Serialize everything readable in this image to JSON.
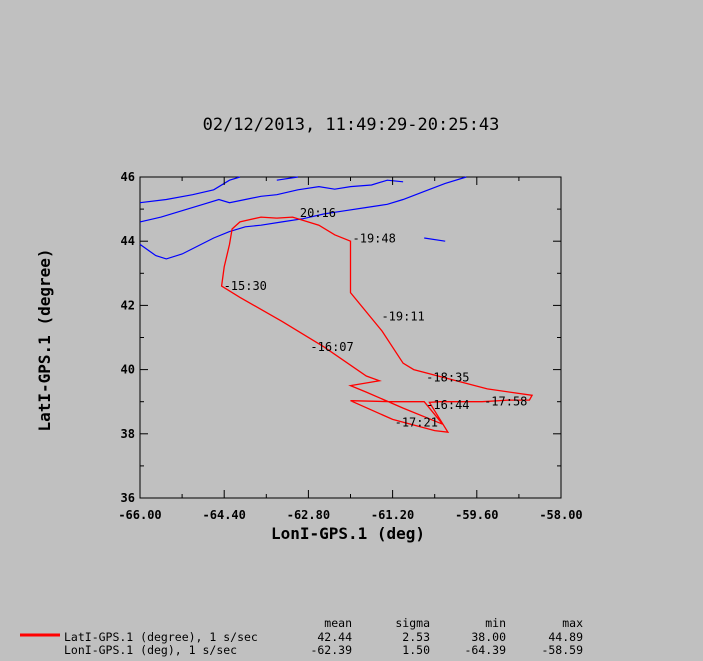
{
  "chart_data": {
    "type": "line",
    "title": "02/12/2013, 11:49:29-20:25:43",
    "xlabel": "LonI-GPS.1 (deg)",
    "ylabel": "LatI-GPS.1 (degree)",
    "xlim": [
      -66.0,
      -58.0
    ],
    "ylim": [
      36,
      46
    ],
    "x_ticks": [
      "-66.00",
      "-64.40",
      "-62.80",
      "-61.20",
      "-59.60",
      "-58.00"
    ],
    "y_ticks": [
      "36",
      "38",
      "40",
      "42",
      "44",
      "46"
    ],
    "series": [
      {
        "name": "LatI-GPS.1 (degree), 1 s/sec",
        "color": "#ff0000",
        "points": [
          [
            -63.4,
            44.72
          ],
          [
            -63.7,
            44.75
          ],
          [
            -64.1,
            44.6
          ],
          [
            -64.25,
            44.38
          ],
          [
            -64.3,
            43.9
          ],
          [
            -64.4,
            43.2
          ],
          [
            -64.45,
            42.6
          ],
          [
            -64.1,
            42.25
          ],
          [
            -63.3,
            41.5
          ],
          [
            -62.5,
            40.7
          ],
          [
            -61.7,
            39.8
          ],
          [
            -61.45,
            39.65
          ],
          [
            -62.0,
            39.5
          ],
          [
            -61.7,
            39.3
          ],
          [
            -61.0,
            38.8
          ],
          [
            -60.25,
            38.3
          ],
          [
            -60.6,
            39.0
          ],
          [
            -61.2,
            39.0
          ],
          [
            -62.0,
            39.03
          ],
          [
            -61.2,
            38.45
          ],
          [
            -60.4,
            38.1
          ],
          [
            -60.15,
            38.05
          ],
          [
            -60.5,
            38.98
          ],
          [
            -60.3,
            39.0
          ],
          [
            -59.5,
            39.0
          ],
          [
            -59.0,
            39.05
          ],
          [
            -58.6,
            39.05
          ],
          [
            -58.55,
            39.2
          ],
          [
            -59.4,
            39.4
          ],
          [
            -60.8,
            40.0
          ],
          [
            -61.0,
            40.2
          ],
          [
            -61.4,
            41.2
          ],
          [
            -62.0,
            42.4
          ],
          [
            -62.0,
            43.0
          ],
          [
            -62.0,
            44.0
          ],
          [
            -62.3,
            44.2
          ],
          [
            -62.6,
            44.5
          ],
          [
            -63.1,
            44.75
          ],
          [
            -63.4,
            44.72
          ]
        ]
      },
      {
        "name": "LonI-GPS.1 (deg), 1 s/sec",
        "color": "#000000",
        "points": []
      }
    ],
    "annotations": [
      {
        "label": "-15:30",
        "x": -64.45,
        "y": 42.6
      },
      {
        "label": "-16:07",
        "x": -62.8,
        "y": 40.7
      },
      {
        "label": "-16:44",
        "x": -60.6,
        "y": 38.9
      },
      {
        "label": "-17:21",
        "x": -61.2,
        "y": 38.35
      },
      {
        "label": "-17:58",
        "x": -59.5,
        "y": 39.0
      },
      {
        "label": "-18:35",
        "x": -60.6,
        "y": 39.75
      },
      {
        "label": "-19:11",
        "x": -61.45,
        "y": 41.65
      },
      {
        "label": "-19:48",
        "x": -62.0,
        "y": 44.08
      },
      {
        "label": "20:16",
        "x": -63.0,
        "y": 44.88
      }
    ],
    "coastline_color": "#0000ff"
  },
  "legend": {
    "headers": [
      "mean",
      "sigma",
      "min",
      "max"
    ],
    "rows": [
      {
        "label": "LatI-GPS.1 (degree), 1 s/sec",
        "color": "#ff0000",
        "mean": "42.44",
        "sigma": "2.53",
        "min": "38.00",
        "max": "44.89"
      },
      {
        "label": "LonI-GPS.1 (deg), 1 s/sec",
        "color": "",
        "mean": "-62.39",
        "sigma": "1.50",
        "min": "-64.39",
        "max": "-58.59"
      }
    ]
  }
}
